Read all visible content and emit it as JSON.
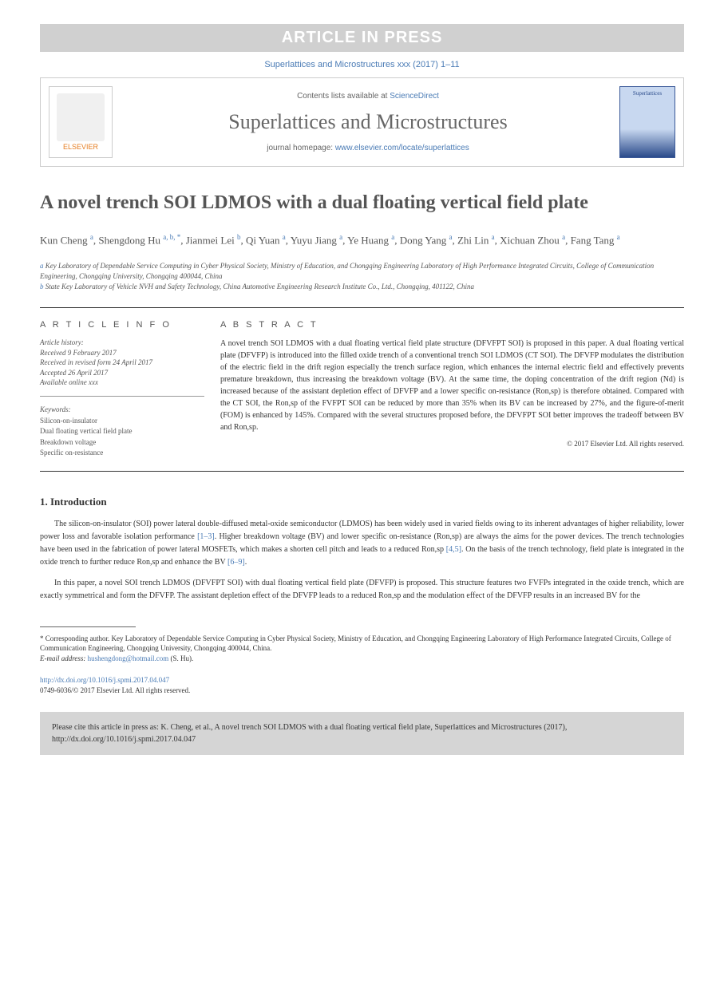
{
  "banner": "ARTICLE IN PRESS",
  "journalRef": "Superlattices and Microstructures xxx (2017) 1–11",
  "header": {
    "contentsPrefix": "Contents lists available at ",
    "contentsLink": "ScienceDirect",
    "journalName": "Superlattices and Microstructures",
    "homepagePrefix": "journal homepage: ",
    "homepageUrl": "www.elsevier.com/locate/superlattices",
    "publisherLogo": "ELSEVIER",
    "coverTitle": "Superlattices"
  },
  "title": "A novel trench SOI LDMOS with a dual floating vertical field plate",
  "authors": [
    {
      "name": "Kun Cheng",
      "sup": "a"
    },
    {
      "name": "Shengdong Hu",
      "sup": "a, b, *"
    },
    {
      "name": "Jianmei Lei",
      "sup": "b"
    },
    {
      "name": "Qi Yuan",
      "sup": "a"
    },
    {
      "name": "Yuyu Jiang",
      "sup": "a"
    },
    {
      "name": "Ye Huang",
      "sup": "a"
    },
    {
      "name": "Dong Yang",
      "sup": "a"
    },
    {
      "name": "Zhi Lin",
      "sup": "a"
    },
    {
      "name": "Xichuan Zhou",
      "sup": "a"
    },
    {
      "name": "Fang Tang",
      "sup": "a"
    }
  ],
  "affiliations": {
    "a": "Key Laboratory of Dependable Service Computing in Cyber Physical Society, Ministry of Education, and Chongqing Engineering Laboratory of High Performance Integrated Circuits, College of Communication Engineering, Chongqing University, Chongqing 400044, China",
    "b": "State Key Laboratory of Vehicle NVH and Safety Technology, China Automotive Engineering Research Institute Co., Ltd., Chongqing, 401122, China"
  },
  "articleInfo": {
    "label": "A R T I C L E   I N F O",
    "historyLabel": "Article history:",
    "received": "Received 9 February 2017",
    "revised": "Received in revised form 24 April 2017",
    "accepted": "Accepted 26 April 2017",
    "online": "Available online xxx",
    "keywordsLabel": "Keywords:",
    "keywords": [
      "Silicon-on-insulator",
      "Dual floating vertical field plate",
      "Breakdown voltage",
      "Specific on-resistance"
    ]
  },
  "abstract": {
    "label": "A B S T R A C T",
    "text": "A novel trench SOI LDMOS with a dual floating vertical field plate structure (DFVFPT SOI) is proposed in this paper. A dual floating vertical plate (DFVFP) is introduced into the filled oxide trench of a conventional trench SOI LDMOS (CT SOI). The DFVFP modulates the distribution of the electric field in the drift region especially the trench surface region, which enhances the internal electric field and effectively prevents premature breakdown, thus increasing the breakdown voltage (BV). At the same time, the doping concentration of the drift region (Nd) is increased because of the assistant depletion effect of DFVFP and a lower specific on-resistance (Ron,sp) is therefore obtained. Compared with the CT SOI, the Ron,sp of the FVFPT SOI can be reduced by more than 35% when its BV can be increased by 27%, and the figure-of-merit (FOM) is enhanced by 145%. Compared with the several structures proposed before, the DFVFPT SOI better improves the tradeoff between BV and Ron,sp.",
    "copyright": "© 2017 Elsevier Ltd. All rights reserved."
  },
  "intro": {
    "heading": "1. Introduction",
    "p1a": "The silicon-on-insulator (SOI) power lateral double-diffused metal-oxide semiconductor (LDMOS) has been widely used in varied fields owing to its inherent advantages of higher reliability, lower power loss and favorable isolation performance ",
    "ref1": "[1–3]",
    "p1b": ". Higher breakdown voltage (BV) and lower specific on-resistance (Ron,sp) are always the aims for the power devices. The trench technologies have been used in the fabrication of power lateral MOSFETs, which makes a shorten cell pitch and leads to a reduced Ron,sp ",
    "ref2": "[4,5]",
    "p1c": ". On the basis of the trench technology, field plate is integrated in the oxide trench to further reduce Ron,sp and enhance the BV ",
    "ref3": "[6–9]",
    "p1d": ".",
    "p2": "In this paper, a novel SOI trench LDMOS (DFVFPT SOI) with dual floating vertical field plate (DFVFP) is proposed. This structure features two FVFPs integrated in the oxide trench, which are exactly symmetrical and form the DFVFP. The assistant depletion effect of the DFVFP leads to a reduced Ron,sp and the modulation effect of the DFVFP results in an increased BV for the"
  },
  "footnote": {
    "corr": "* Corresponding author. Key Laboratory of Dependable Service Computing in Cyber Physical Society, Ministry of Education, and Chongqing Engineering Laboratory of High Performance Integrated Circuits, College of Communication Engineering, Chongqing University, Chongqing 400044, China.",
    "emailLabel": "E-mail address: ",
    "email": "hushengdong@hotmail.com",
    "emailAuthor": " (S. Hu)."
  },
  "doi": {
    "url": "http://dx.doi.org/10.1016/j.spmi.2017.04.047",
    "copy": "0749-6036/© 2017 Elsevier Ltd. All rights reserved."
  },
  "citeBox": "Please cite this article in press as: K. Cheng, et al., A novel trench SOI LDMOS with a dual floating vertical field plate, Superlattices and Microstructures (2017), http://dx.doi.org/10.1016/j.spmi.2017.04.047"
}
